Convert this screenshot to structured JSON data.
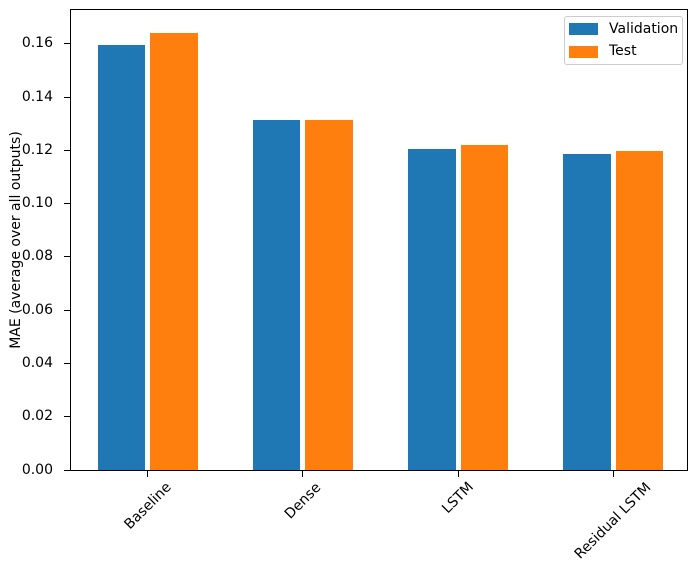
{
  "chart_data": {
    "type": "bar",
    "title": "",
    "xlabel": "",
    "ylabel": "MAE (average over all outputs)",
    "categories": [
      "Baseline",
      "Dense",
      "LSTM",
      "Residual LSTM"
    ],
    "series": [
      {
        "name": "Validation",
        "color": "#1f77b4",
        "values": [
          0.1595,
          0.1315,
          0.1204,
          0.1188
        ]
      },
      {
        "name": "Test",
        "color": "#ff7f0e",
        "values": [
          0.1642,
          0.1315,
          0.122,
          0.1196
        ]
      }
    ],
    "ylim": [
      0,
      0.1727
    ],
    "yticks": [
      "0.00",
      "0.02",
      "0.04",
      "0.06",
      "0.08",
      "0.10",
      "0.12",
      "0.14",
      "0.16"
    ],
    "grid": false,
    "x_tick_rotation": 45,
    "legend": {
      "position": "upper right",
      "entries": [
        "Validation",
        "Test"
      ]
    },
    "axis_color": "#000000",
    "background_color": "#ffffff"
  }
}
